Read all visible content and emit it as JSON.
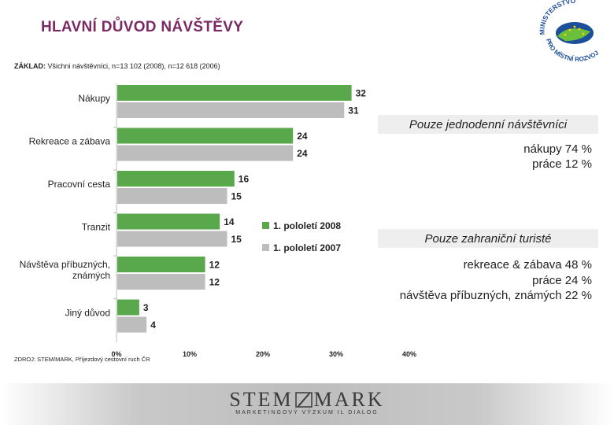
{
  "header": {
    "title": "HLAVNÍ DŮVOD NÁVŠTĚVY",
    "logo_text_top": "MINISTERSTVO",
    "logo_text_bottom": "PRO MÍSTNÍ ROZVOJ"
  },
  "basis": {
    "label": "ZÁKLAD:",
    "text": "Všichni návštěvníci, n=13 102 (2008), n=12 618 (2006)"
  },
  "source": "ZDROJ: STEM/MARK, Příjezdový cestovní ruch ČR",
  "colors": {
    "series_2008": "#5aa84c",
    "series_2007": "#bdbdbd",
    "title": "#7b2a63"
  },
  "chart_data": {
    "type": "bar",
    "orientation": "horizontal",
    "categories": [
      "Nákupy",
      "Rekreace a zábava",
      "Pracovní cesta",
      "Tranzit",
      "Návštěva příbuzných, známých",
      "Jiný důvod"
    ],
    "series": [
      {
        "name": "1. pololetí 2008",
        "values": [
          32,
          24,
          16,
          14,
          12,
          3
        ]
      },
      {
        "name": "1. pololetí 2007",
        "values": [
          31,
          24,
          15,
          15,
          12,
          4
        ]
      }
    ],
    "xlim": [
      0,
      40
    ],
    "xticks": [
      "0%",
      "10%",
      "20%",
      "30%",
      "40%"
    ],
    "legend_position": "right",
    "grid": false
  },
  "side_panel": {
    "box1_title": "Pouze jednodenní návštěvníci",
    "box1_lines": [
      "nákupy 74 %",
      "práce 12 %"
    ],
    "box2_title": "Pouze zahraniční turisté",
    "box2_lines": [
      "rekreace & zábava 48 %",
      "práce 24 %",
      "návštěva příbuzných, známých 22 %"
    ]
  },
  "footer": {
    "brand_left": "STEM",
    "brand_right": "MARK",
    "tagline": "MARKETINGOVÝ VÝZKUM IL DIALOG"
  }
}
